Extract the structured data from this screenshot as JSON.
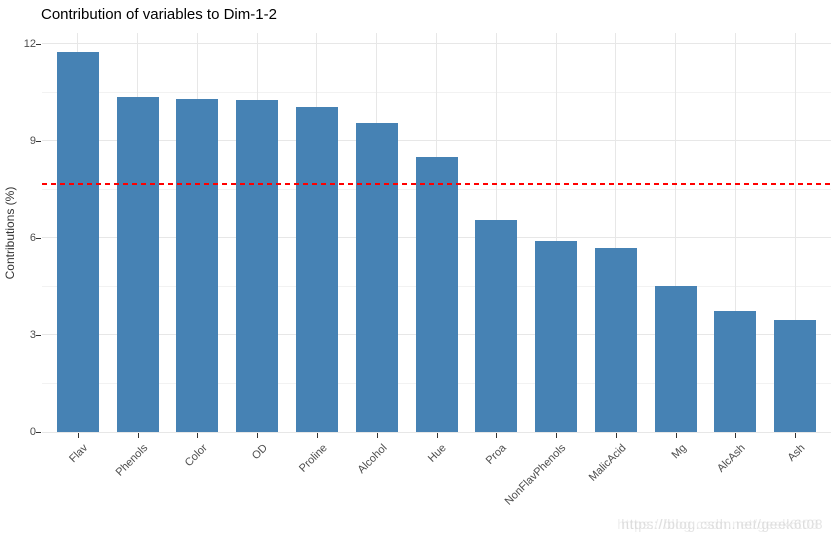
{
  "title": "Contribution of variables to Dim-1-2",
  "chart_data": {
    "type": "bar",
    "title": "Contribution of variables to Dim-1-2",
    "categories": [
      "Flav",
      "Phenols",
      "Color",
      "OD",
      "Proline",
      "Alcohol",
      "Hue",
      "Proa",
      "NonFlavPhenols",
      "MalicAcid",
      "Mg",
      "AlcAsh",
      "Ash"
    ],
    "values": [
      11.75,
      10.35,
      10.3,
      10.25,
      10.05,
      9.55,
      8.5,
      6.55,
      5.9,
      5.7,
      4.5,
      3.75,
      3.45
    ],
    "xlabel": "",
    "ylabel": "Contributions (%)",
    "ylim": [
      0,
      12.35
    ],
    "yticks": [
      0,
      3,
      6,
      9,
      12
    ],
    "yticks_minor": [
      1.5,
      4.5,
      7.5,
      10.5
    ],
    "grid": true,
    "legend": "none",
    "bar_color": "#4682B4",
    "reference_line": {
      "value": 7.69,
      "style": "dashed",
      "color": "#ff0000"
    }
  },
  "watermark": {
    "text": "https://blog.csdn.net/geek6t08"
  }
}
